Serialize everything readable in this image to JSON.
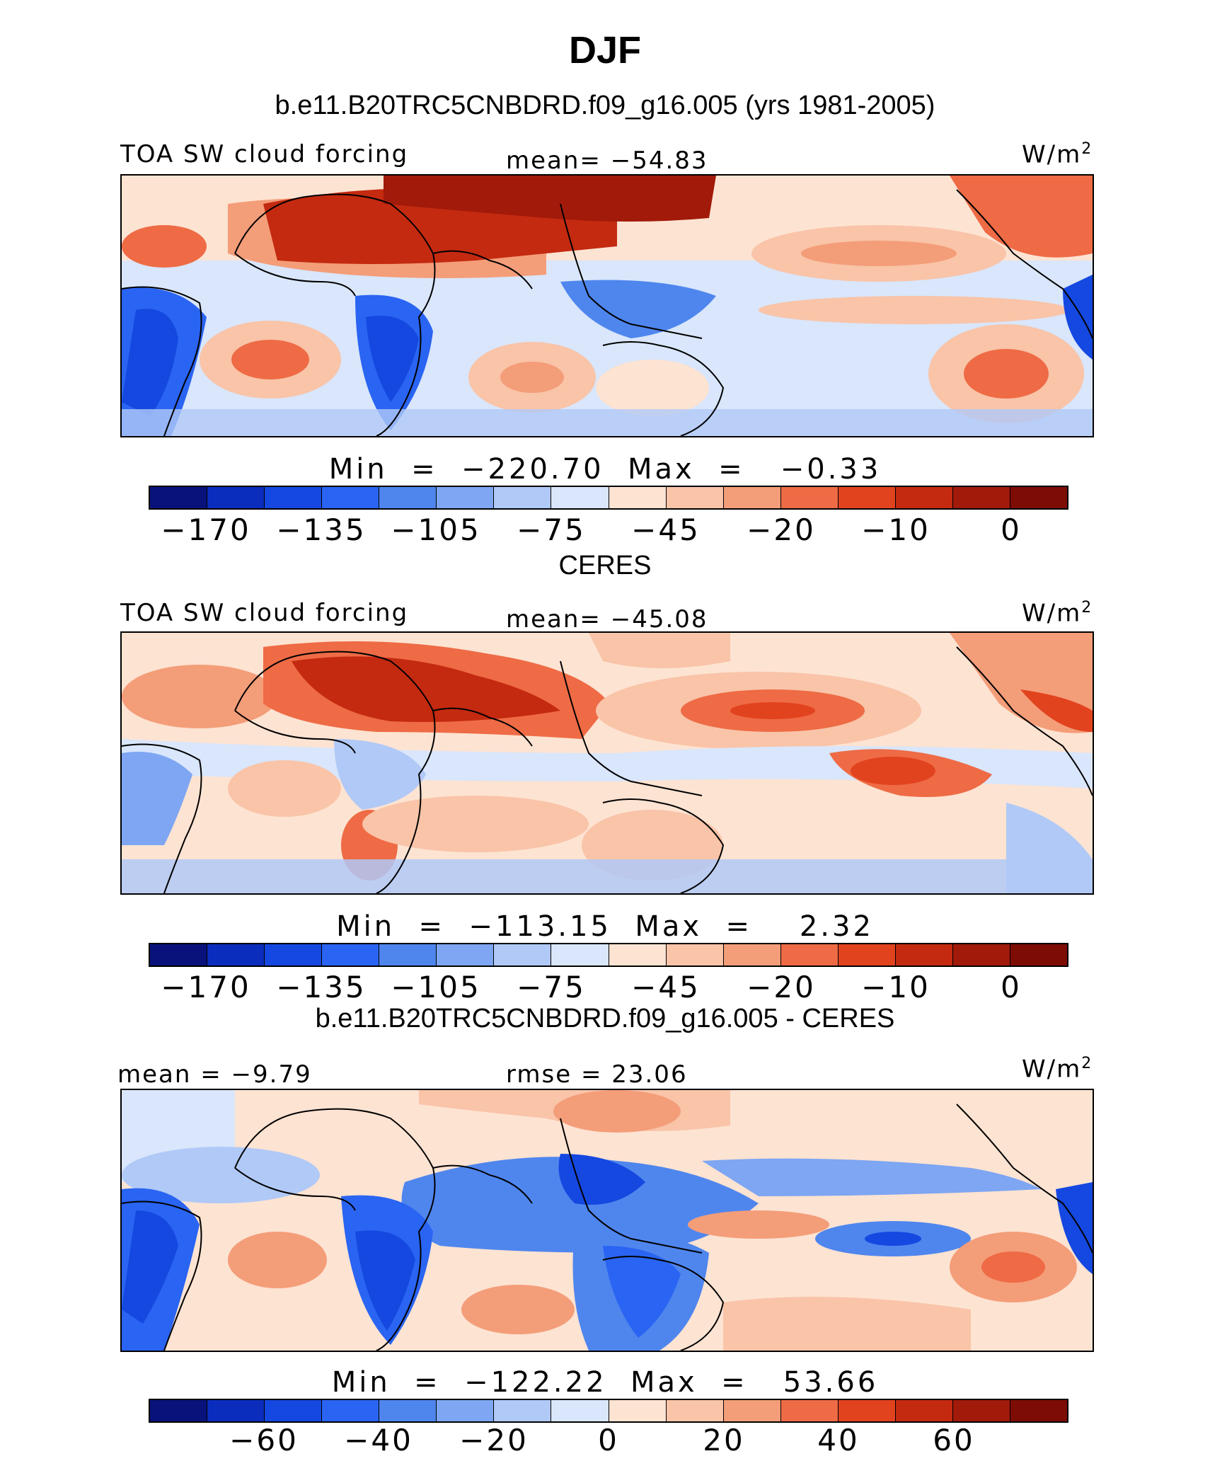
{
  "figure": {
    "title": "DJF"
  },
  "colors": {
    "palette": [
      "#08127a",
      "#0a2dbd",
      "#1548e0",
      "#2a64f2",
      "#4f86ee",
      "#7ea6f2",
      "#b0c9f7",
      "#d9e6fb",
      "#fde3d2",
      "#f9c4a8",
      "#f49d79",
      "#ee6b45",
      "#e2431f",
      "#c42a10",
      "#a11a0a",
      "#7d0c04"
    ]
  },
  "panels": [
    {
      "heading": "b.e11.B20TRC5CNBDRD.f09_g16.005 (yrs 1981-2005)",
      "left_label": "TOA SW cloud forcing",
      "center_label": "mean=  −54.83",
      "units": "W/m",
      "units_sup": "2",
      "minmax": "Min  =  −220.70  Max  =   −0.33",
      "ticks": [
        "−170",
        "−135",
        "−105",
        "−75",
        "−45",
        "−20",
        "−10",
        "0"
      ]
    },
    {
      "heading": "CERES",
      "left_label": "TOA SW cloud forcing",
      "center_label": "mean=  −45.08",
      "units": "W/m",
      "units_sup": "2",
      "minmax": "Min  =  −113.15  Max  =    2.32",
      "ticks": [
        "−170",
        "−135",
        "−105",
        "−75",
        "−45",
        "−20",
        "−10",
        "0"
      ]
    },
    {
      "heading": "b.e11.B20TRC5CNBDRD.f09_g16.005 - CERES",
      "left_label": "mean  =   −9.79",
      "center_label": "rmse  =   23.06",
      "units": "W/m",
      "units_sup": "2",
      "minmax": "Min  =  −122.22  Max  =   53.66",
      "ticks": [
        "−60",
        "−40",
        "−20",
        "0",
        "20",
        "40",
        "60"
      ]
    }
  ]
}
